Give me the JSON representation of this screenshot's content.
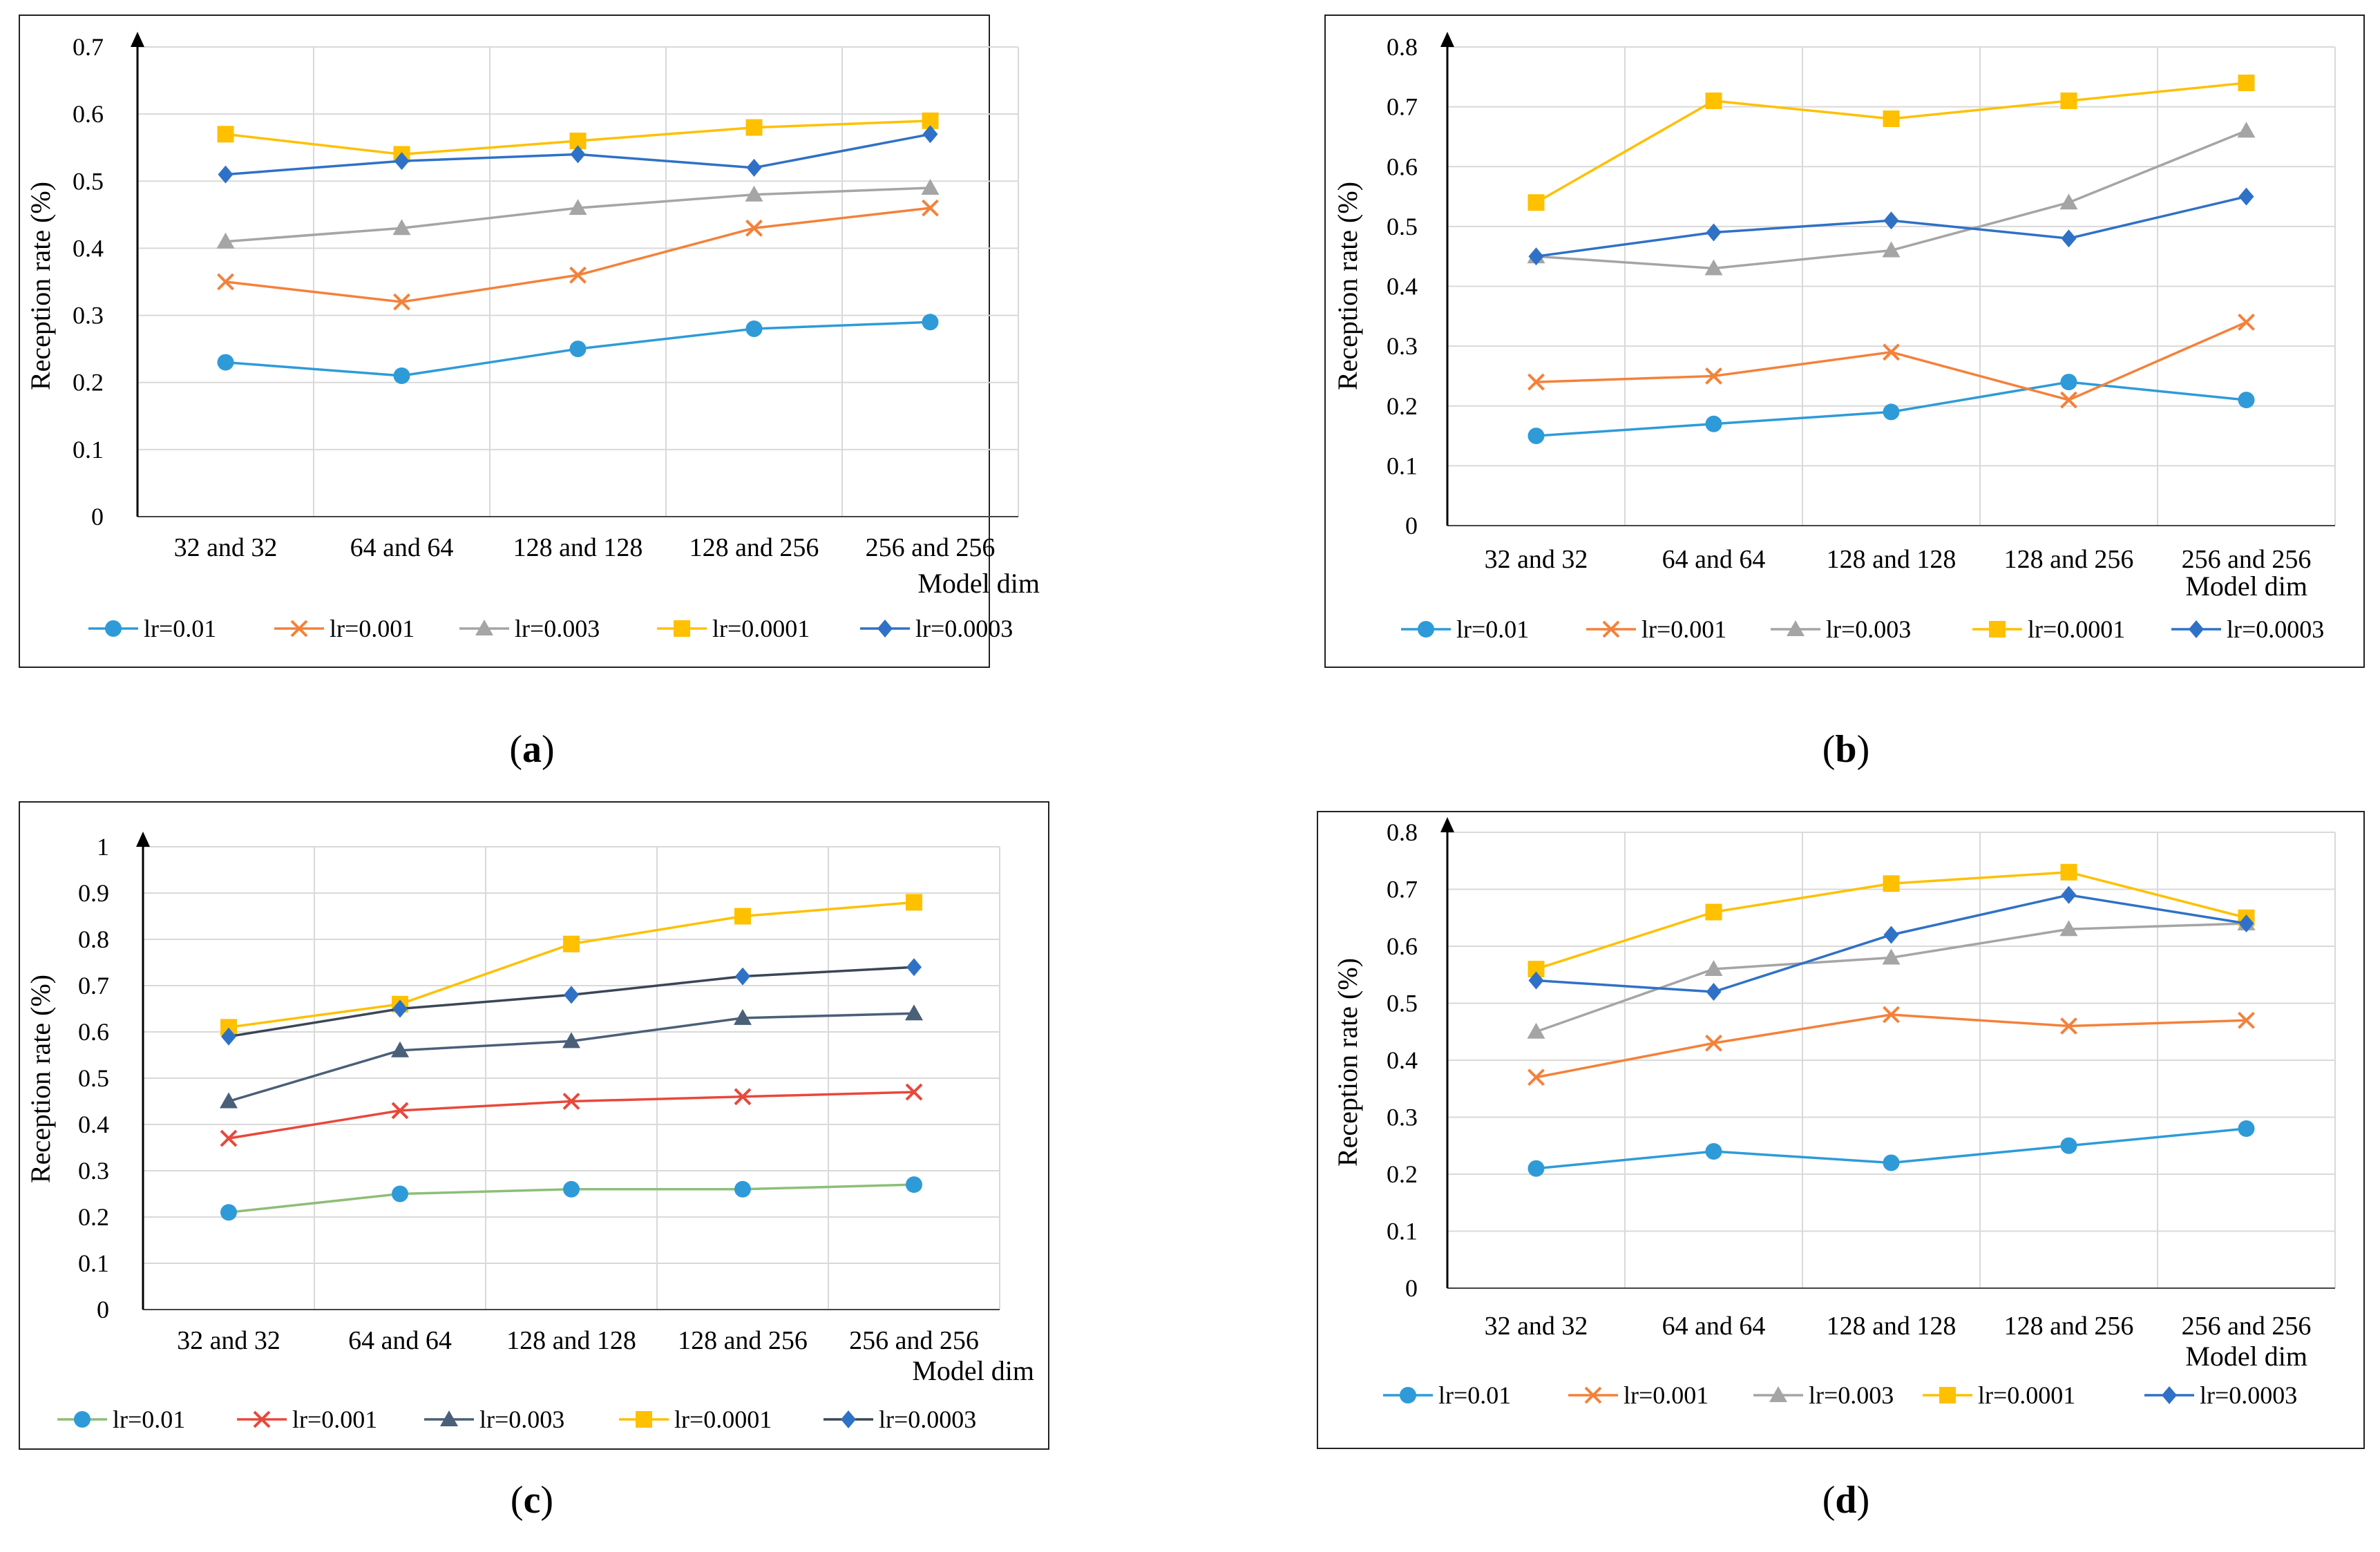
{
  "chart_data": [
    {
      "type": "line",
      "panel_label": "(a)",
      "categories": [
        "32 and 32",
        "64 and 64",
        "128 and 128",
        "128 and 256",
        "256 and 256"
      ],
      "ylabel": "Reception rate  (%)",
      "xlabel": "Model dim",
      "ylim": [
        0,
        0.7
      ],
      "yticks": [
        "0",
        "0.1",
        "0.2",
        "0.3",
        "0.4",
        "0.5",
        "0.6",
        "0.7"
      ],
      "grid": true,
      "legend": "bottom",
      "series": [
        {
          "name": "lr=0.01",
          "marker": "circle",
          "color": "#2E9BD8",
          "values": [
            0.23,
            0.21,
            0.25,
            0.28,
            0.29
          ]
        },
        {
          "name": "lr=0.001",
          "marker": "x",
          "color": "#F4813A",
          "values": [
            0.35,
            0.32,
            0.36,
            0.43,
            0.46
          ]
        },
        {
          "name": "lr=0.003",
          "marker": "triangle",
          "color": "#A5A5A5",
          "values": [
            0.41,
            0.43,
            0.46,
            0.48,
            0.49
          ]
        },
        {
          "name": "lr=0.0001",
          "marker": "square",
          "color": "#FFC000",
          "values": [
            0.57,
            0.54,
            0.56,
            0.58,
            0.59
          ]
        },
        {
          "name": "lr=0.0003",
          "marker": "diamond",
          "color": "#2F71C6",
          "values": [
            0.51,
            0.53,
            0.54,
            0.52,
            0.57
          ]
        }
      ]
    },
    {
      "type": "line",
      "panel_label": "(b)",
      "categories": [
        "32 and 32",
        "64 and 64",
        "128 and 128",
        "128 and 256",
        "256 and 256"
      ],
      "ylabel": "Reception rate  (%)",
      "xlabel": "Model dim",
      "ylim": [
        0,
        0.8
      ],
      "yticks": [
        "0",
        "0.1",
        "0.2",
        "0.3",
        "0.4",
        "0.5",
        "0.6",
        "0.7",
        "0.8"
      ],
      "grid": true,
      "legend": "bottom",
      "series": [
        {
          "name": "lr=0.01",
          "marker": "circle",
          "color": "#2E9BD8",
          "values": [
            0.15,
            0.17,
            0.19,
            0.24,
            0.21
          ]
        },
        {
          "name": "lr=0.001",
          "marker": "x",
          "color": "#F4813A",
          "values": [
            0.24,
            0.25,
            0.29,
            0.21,
            0.34
          ]
        },
        {
          "name": "lr=0.003",
          "marker": "triangle",
          "color": "#A5A5A5",
          "values": [
            0.45,
            0.43,
            0.46,
            0.54,
            0.66
          ]
        },
        {
          "name": "lr=0.0001",
          "marker": "square",
          "color": "#FFC000",
          "values": [
            0.54,
            0.71,
            0.68,
            0.71,
            0.74
          ]
        },
        {
          "name": "lr=0.0003",
          "marker": "diamond",
          "color": "#2F71C6",
          "values": [
            0.45,
            0.49,
            0.51,
            0.48,
            0.55
          ]
        }
      ]
    },
    {
      "type": "line",
      "panel_label": "(c)",
      "categories": [
        "32 and 32",
        "64 and 64",
        "128 and 128",
        "128 and 256",
        "256 and 256"
      ],
      "ylabel": "Reception rate  (%)",
      "xlabel": "Model dim",
      "ylim": [
        0,
        1
      ],
      "yticks": [
        "0",
        "0.1",
        "0.2",
        "0.3",
        "0.4",
        "0.5",
        "0.6",
        "0.7",
        "0.8",
        "0.9",
        "1"
      ],
      "grid": true,
      "legend": "bottom",
      "series": [
        {
          "name": "lr=0.01",
          "marker": "circle",
          "color": "#2E9BD8",
          "line_color": "#8DBE77",
          "values": [
            0.21,
            0.25,
            0.26,
            0.26,
            0.27
          ]
        },
        {
          "name": "lr=0.001",
          "marker": "x",
          "color": "#E8483B",
          "values": [
            0.37,
            0.43,
            0.45,
            0.46,
            0.47
          ]
        },
        {
          "name": "lr=0.003",
          "marker": "triangle",
          "color": "#4A5F78",
          "values": [
            0.45,
            0.56,
            0.58,
            0.63,
            0.64
          ]
        },
        {
          "name": "lr=0.0001",
          "marker": "square",
          "color": "#FFC000",
          "values": [
            0.61,
            0.66,
            0.79,
            0.85,
            0.88
          ]
        },
        {
          "name": "lr=0.0003",
          "marker": "diamond",
          "color": "#2F71C6",
          "line_color": "#3B4656",
          "values": [
            0.59,
            0.65,
            0.68,
            0.72,
            0.74
          ]
        }
      ]
    },
    {
      "type": "line",
      "panel_label": "(d)",
      "categories": [
        "32 and 32",
        "64 and 64",
        "128 and 128",
        "128 and 256",
        "256 and 256"
      ],
      "ylabel": "Reception rate  (%)",
      "xlabel": "Model dim",
      "ylim": [
        0,
        0.8
      ],
      "yticks": [
        "0",
        "0.1",
        "0.2",
        "0.3",
        "0.4",
        "0.5",
        "0.6",
        "0.7",
        "0.8"
      ],
      "grid": true,
      "legend": "bottom",
      "series": [
        {
          "name": "lr=0.01",
          "marker": "circle",
          "color": "#2E9BD8",
          "values": [
            0.21,
            0.24,
            0.22,
            0.25,
            0.28
          ]
        },
        {
          "name": "lr=0.001",
          "marker": "x",
          "color": "#F4813A",
          "values": [
            0.37,
            0.43,
            0.48,
            0.46,
            0.47
          ]
        },
        {
          "name": "lr=0.003",
          "marker": "triangle",
          "color": "#A5A5A5",
          "values": [
            0.45,
            0.56,
            0.58,
            0.63,
            0.64
          ]
        },
        {
          "name": "lr=0.0001",
          "marker": "square",
          "color": "#FFC000",
          "values": [
            0.56,
            0.66,
            0.71,
            0.73,
            0.65
          ]
        },
        {
          "name": "lr=0.0003",
          "marker": "diamond",
          "color": "#2F71C6",
          "values": [
            0.54,
            0.52,
            0.62,
            0.69,
            0.64
          ]
        }
      ]
    }
  ]
}
